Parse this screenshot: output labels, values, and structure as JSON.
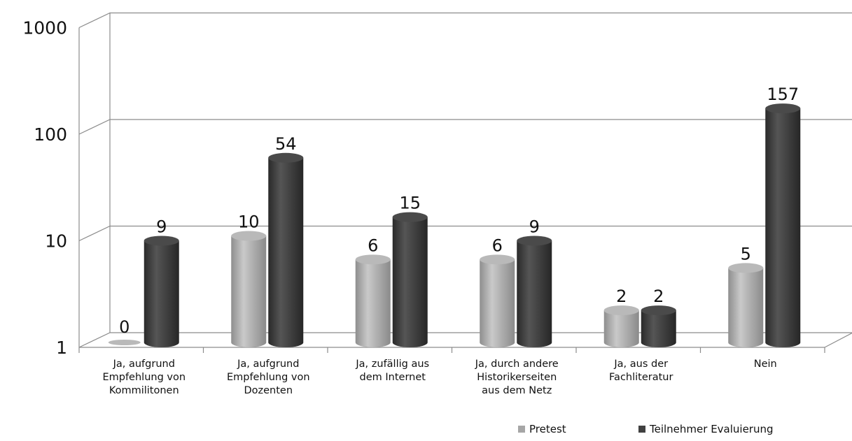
{
  "chart_data": {
    "type": "bar",
    "style": "3d-cylinder",
    "scale": "log",
    "ylim": [
      1,
      1000
    ],
    "y_ticks": [
      "1",
      "10",
      "100",
      "1000"
    ],
    "y_tick_values": [
      1,
      10,
      100,
      1000
    ],
    "categories": [
      [
        "Ja, aufgrund",
        "Empfehlung von",
        "Kommilitonen"
      ],
      [
        "Ja, aufgrund",
        "Empfehlung von",
        "Dozenten"
      ],
      [
        "Ja, zufällig aus",
        "dem Internet"
      ],
      [
        "Ja, durch andere",
        "Historikerseiten",
        "aus dem Netz"
      ],
      [
        "Ja, aus der",
        "Fachliteratur"
      ],
      [
        "Nein"
      ]
    ],
    "series": [
      {
        "name": "Pretest",
        "color": "#a6a6a6",
        "values": [
          0,
          10,
          6,
          6,
          2,
          5
        ]
      },
      {
        "name": "Teilnehmer Evaluierung",
        "color": "#404040",
        "values": [
          9,
          54,
          15,
          9,
          2,
          157
        ]
      }
    ],
    "legend_position": "bottom-right",
    "grid": true
  }
}
